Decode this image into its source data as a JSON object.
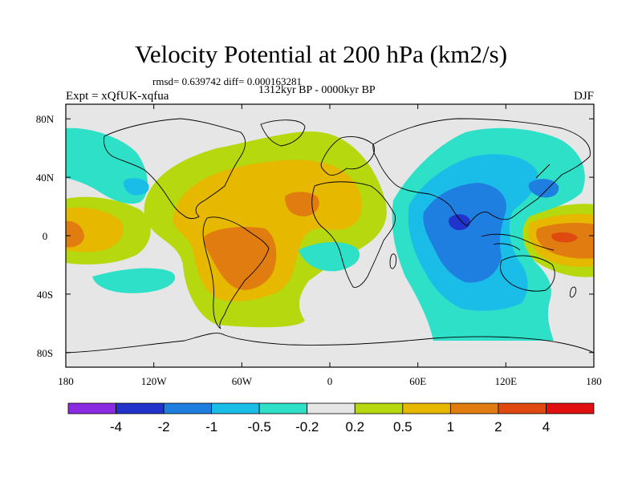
{
  "figure": {
    "title": "Velocity Potential at 200 hPa (km2/s)",
    "stats": "rmsd= 0.639742 diff= 0.000163281",
    "period": "1312kyr BP - 0000kyr BP",
    "experiment": "Expt = xQfUK-xqfua",
    "season": "DJF"
  },
  "map": {
    "projection": "cylindrical equidistant",
    "lon_range": [
      -180,
      180
    ],
    "lat_range": [
      -90,
      90
    ],
    "lon_ticks": [
      -180,
      -120,
      -60,
      0,
      60,
      120,
      180
    ],
    "lon_tick_labels": [
      "180",
      "120W",
      "60W",
      "0",
      "60E",
      "120E",
      "180"
    ],
    "lat_ticks": [
      80,
      40,
      0,
      -40,
      -80
    ],
    "lat_tick_labels": [
      "80N",
      "40N",
      "0",
      "40S",
      "80S"
    ],
    "background_color": "#e6e6e6"
  },
  "colorbar": {
    "labels": [
      "-4",
      "-2",
      "-1",
      "-0.5",
      "-0.2",
      "0.2",
      "0.5",
      "1",
      "2",
      "4"
    ],
    "colors": [
      "#8a2be2",
      "#2233cc",
      "#1f7fe0",
      "#19bde8",
      "#2ee0c8",
      "#e6e6e6",
      "#b5d80f",
      "#e6b800",
      "#e07c10",
      "#e04a10",
      "#e01010"
    ]
  }
}
